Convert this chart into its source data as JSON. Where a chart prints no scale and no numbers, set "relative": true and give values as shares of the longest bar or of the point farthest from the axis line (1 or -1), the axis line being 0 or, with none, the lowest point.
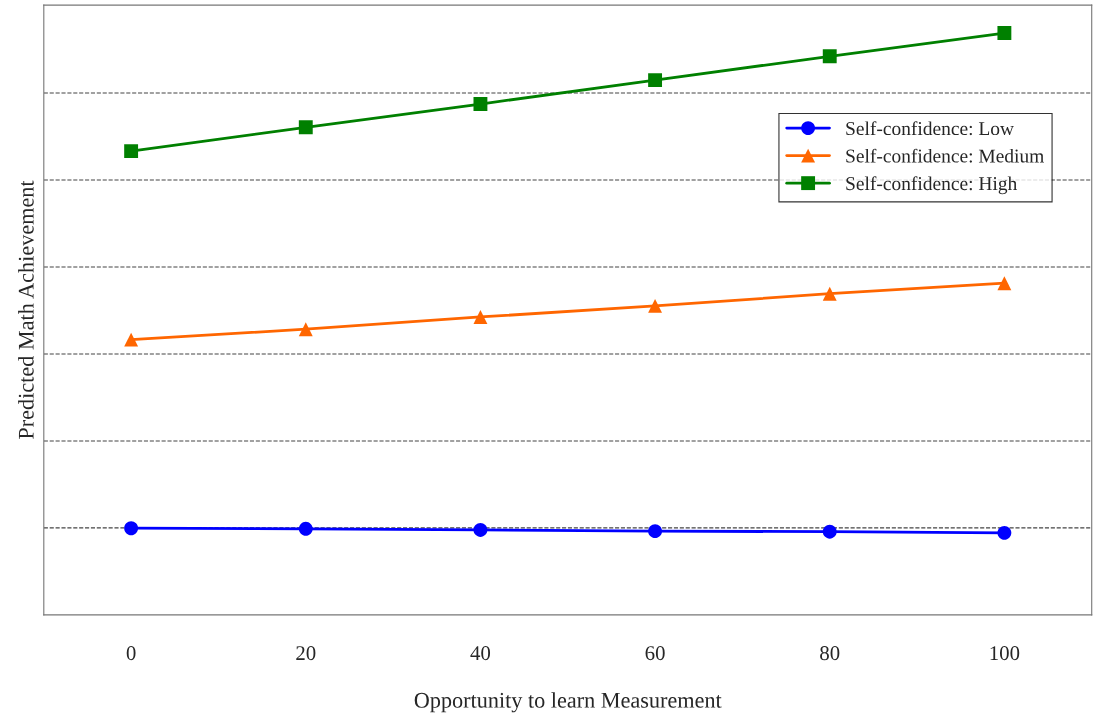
{
  "chart_data": {
    "type": "line",
    "relative": true,
    "xlabel": "Opportunity to learn Measurement",
    "ylabel": "Predicted Math Achievement",
    "x": [
      0,
      20,
      40,
      60,
      80,
      100
    ],
    "xlim": [
      -10,
      110
    ],
    "xticks": [
      0,
      20,
      40,
      60,
      80,
      100
    ],
    "series": [
      {
        "name": "Self-confidence: Low",
        "color": "#0000ff",
        "marker": "circle",
        "values": [
          0.149,
          0.148,
          0.146,
          0.144,
          0.143,
          0.141
        ]
      },
      {
        "name": "Self-confidence: Medium",
        "color": "#ff6600",
        "marker": "triangle",
        "values": [
          0.473,
          0.491,
          0.512,
          0.531,
          0.552,
          0.57
        ]
      },
      {
        "name": "Self-confidence: High",
        "color": "#008000",
        "marker": "square",
        "values": [
          0.797,
          0.838,
          0.878,
          0.919,
          0.96,
          1
        ]
      }
    ],
    "grid": "y",
    "legend": "top right",
    "line_style": "solid"
  }
}
